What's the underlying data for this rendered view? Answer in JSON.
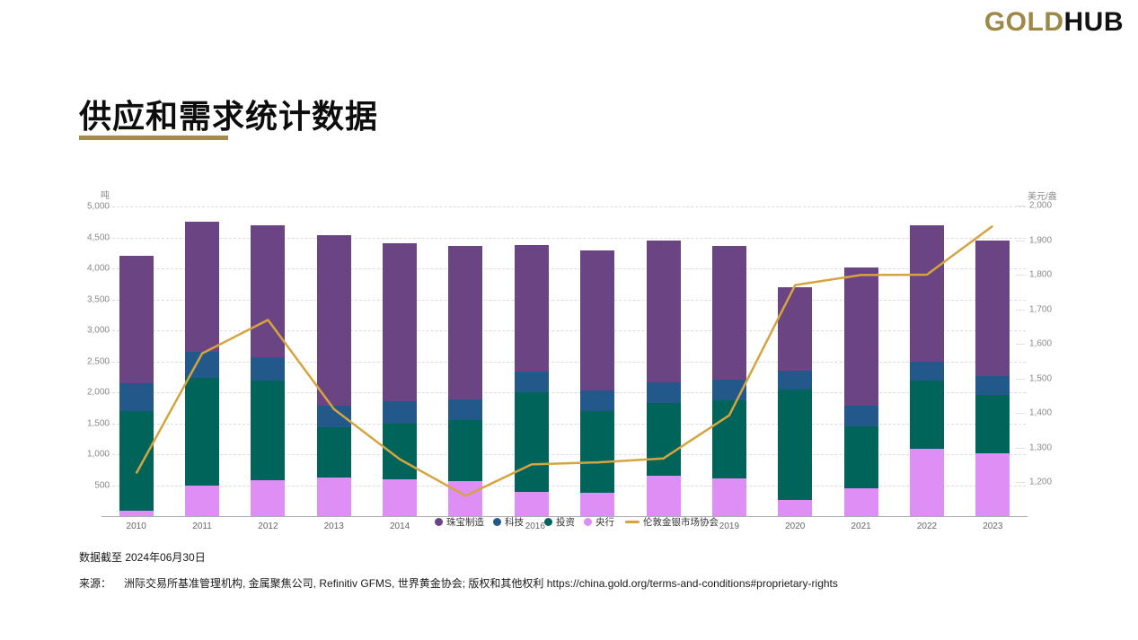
{
  "logo": {
    "gold": "GOLD",
    "hub": "HUB"
  },
  "page_title": "供应和需求统计数据",
  "footer": {
    "data_as_of": "数据截至 2024年06月30日",
    "source_label": "来源：",
    "source_text": "洲际交易所基准管理机构, 金属聚焦公司, Refinitiv GFMS, 世界黄金协会; 版权和其他权利",
    "source_url": "https://china.gold.org/terms-and-conditions#proprietary-rights"
  },
  "chart_data": {
    "type": "bar",
    "subtype": "stacked-bars-with-line-overlay",
    "title": "供应和需求统计数据",
    "categories": [
      "2010",
      "2011",
      "2012",
      "2013",
      "2014",
      "2015",
      "2016",
      "2017",
      "2018",
      "2019",
      "2020",
      "2021",
      "2022",
      "2023"
    ],
    "left_axis": {
      "title": "吨",
      "range": [
        0,
        5000
      ],
      "ticks": [
        500,
        1000,
        1500,
        2000,
        2500,
        3000,
        3500,
        4000,
        4500,
        5000
      ]
    },
    "right_axis": {
      "title": "美元/盎司",
      "range": [
        1100,
        2000
      ],
      "ticks": [
        1200,
        1300,
        1400,
        1500,
        1600,
        1700,
        1800,
        1900,
        2000
      ]
    },
    "series": [
      {
        "name": "央行",
        "color": "#de8ff5",
        "stack_order": "bottom",
        "values": [
          80,
          490,
          580,
          620,
          600,
          560,
          390,
          380,
          650,
          605,
          255,
          450,
          1080,
          1015
        ]
      },
      {
        "name": "投资",
        "color": "#01645a",
        "stack_order": "2nd",
        "values": [
          1620,
          1740,
          1610,
          810,
          900,
          990,
          1615,
          1310,
          1170,
          1270,
          1790,
          1005,
          1110,
          940
        ]
      },
      {
        "name": "科技",
        "color": "#23598a",
        "stack_order": "3rd",
        "values": [
          450,
          430,
          380,
          360,
          350,
          330,
          325,
          335,
          335,
          325,
          300,
          330,
          310,
          300
        ]
      },
      {
        "name": "珠宝制造",
        "color": "#6b4483",
        "stack_order": "top",
        "values": [
          2050,
          2090,
          2130,
          2740,
          2560,
          2480,
          2040,
          2260,
          2290,
          2160,
          1350,
          2230,
          2200,
          2195
        ]
      }
    ],
    "line_series": {
      "name": "伦敦金银市场协会",
      "axis": "right",
      "color": "#d6a43f",
      "values": [
        1225,
        1572,
        1669,
        1411,
        1266,
        1160,
        1251,
        1257,
        1268,
        1393,
        1770,
        1799,
        1800,
        1941
      ]
    },
    "legend": [
      {
        "label": "珠宝制造",
        "color": "#6b4483",
        "type": "dot"
      },
      {
        "label": "科技",
        "color": "#23598a",
        "type": "dot"
      },
      {
        "label": "投资",
        "color": "#01645a",
        "type": "dot"
      },
      {
        "label": "央行",
        "color": "#de8ff5",
        "type": "dot"
      },
      {
        "label": "伦敦金银市场协会",
        "color": "#d6a43f",
        "type": "line"
      }
    ],
    "grid": "horizontal-dashed",
    "legend_position": "bottom, overlapping x-axis labels 2015/2017/2018 (2016 visible between items)"
  }
}
